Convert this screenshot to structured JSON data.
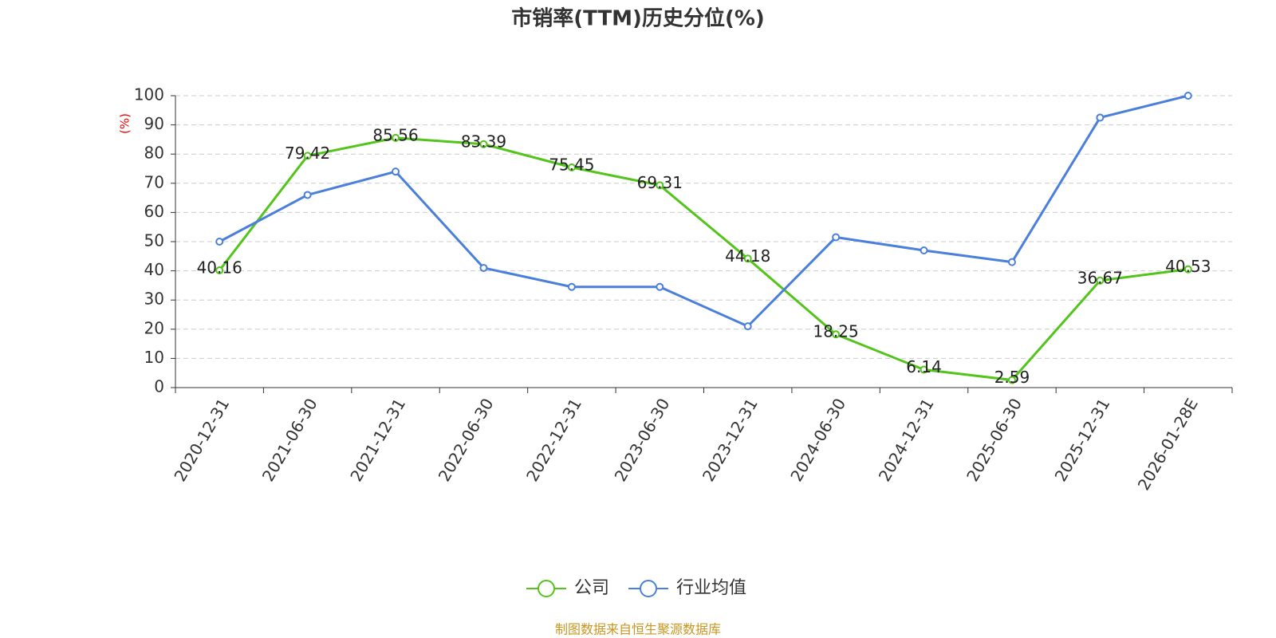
{
  "chart_data": {
    "type": "line",
    "title": "市销率(TTM)历史分位(%)",
    "y_label": "(%)",
    "categories": [
      "2020-12-31",
      "2021-06-30",
      "2021-12-31",
      "2022-06-30",
      "2022-12-31",
      "2023-06-30",
      "2023-12-31",
      "2024-06-30",
      "2024-12-31",
      "2025-06-30",
      "2025-12-31",
      "2026-01-28E"
    ],
    "series": [
      {
        "name": "公司",
        "color": "#52c41a",
        "values": [
          40.16,
          79.42,
          85.56,
          83.39,
          75.45,
          69.31,
          44.18,
          18.25,
          6.14,
          2.59,
          36.67,
          40.53
        ]
      },
      {
        "name": "行业均值",
        "color": "#4a7fdb",
        "values": [
          50,
          66,
          74,
          41,
          34.5,
          34.5,
          21,
          51.5,
          47,
          43,
          92.5,
          100
        ]
      }
    ],
    "ylim": [
      0,
      100
    ],
    "yticks": [
      0,
      10,
      20,
      30,
      40,
      50,
      60,
      70,
      80,
      90,
      100
    ],
    "grid": true,
    "legend": "bottom",
    "source": "制图数据来自恒生聚源数据库"
  }
}
